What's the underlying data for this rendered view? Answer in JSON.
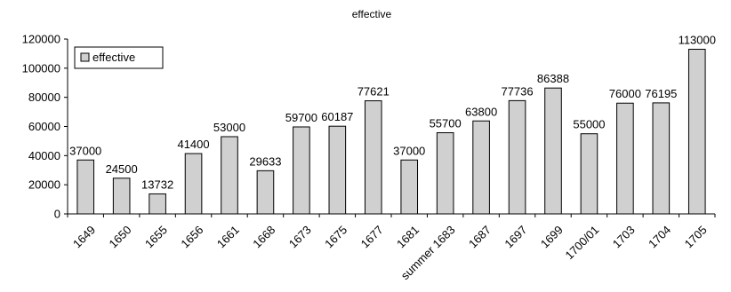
{
  "chart_data": {
    "type": "bar",
    "title": "effective",
    "xlabel": "",
    "ylabel": "",
    "ylim": [
      0,
      120000
    ],
    "yticks": [
      0,
      20000,
      40000,
      60000,
      80000,
      100000,
      120000
    ],
    "grid": false,
    "legend": {
      "position": "top-left",
      "entries": [
        "effective"
      ]
    },
    "categories": [
      "1649",
      "1650",
      "1655",
      "1656",
      "1661",
      "1668",
      "1673",
      "1675",
      "1677",
      "1681",
      "summer 1683",
      "1687",
      "1697",
      "1699",
      "1700/01",
      "1703",
      "1704",
      "1705"
    ],
    "series": [
      {
        "name": "effective",
        "color": "#d0d0d0",
        "values": [
          37000,
          24500,
          13732,
          41400,
          53000,
          29633,
          59700,
          60187,
          77621,
          37000,
          55700,
          63800,
          77736,
          86388,
          55000,
          76000,
          76195,
          113000
        ]
      }
    ]
  }
}
